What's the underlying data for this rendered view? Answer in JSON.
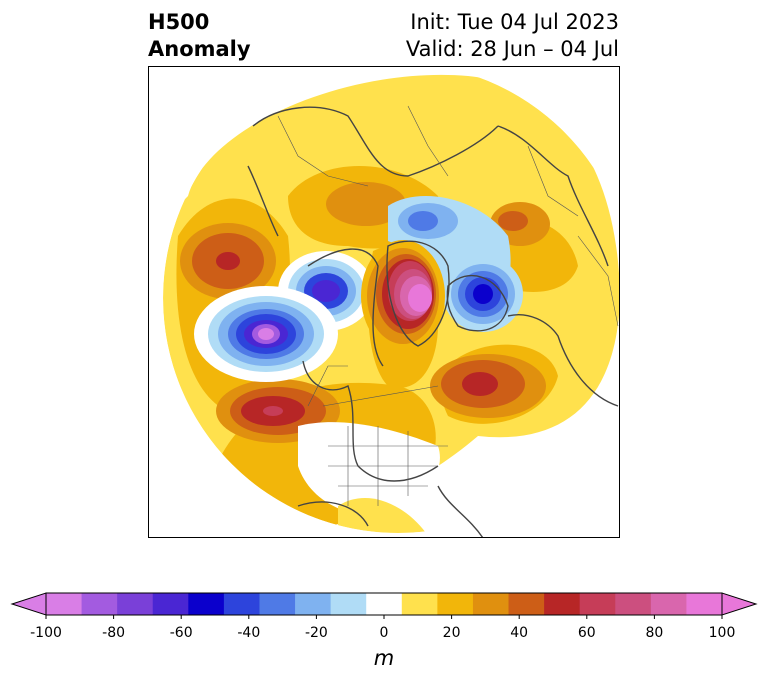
{
  "title": {
    "left_line1": "H500",
    "left_line2": "Anomaly",
    "right_line1": "Init: Tue 04 Jul 2023",
    "right_line2": "Valid: 28 Jun – 04 Jul"
  },
  "colorbar": {
    "unit": "m",
    "min": -100,
    "max": 100,
    "extend": "both",
    "levels": [
      -100,
      -90,
      -80,
      -70,
      -60,
      -50,
      -40,
      -30,
      -20,
      -10,
      10,
      20,
      30,
      40,
      50,
      60,
      70,
      80,
      90,
      100
    ],
    "colors": [
      "#d97ee6",
      "#a35be0",
      "#7a40d8",
      "#4a26d3",
      "#0b00cc",
      "#2d44dc",
      "#4f7ae6",
      "#7fb2f0",
      "#b0dcf6",
      "#ffffff",
      "#ffe14d",
      "#f2b60a",
      "#e0900f",
      "#cd5e17",
      "#b72626",
      "#c63d58",
      "#cc4f7f",
      "#d966ad",
      "#e877d9"
    ],
    "ticks": [
      "-100",
      "-80",
      "-60",
      "-40",
      "-20",
      "0",
      "20",
      "40",
      "60",
      "80",
      "100"
    ]
  },
  "map": {
    "projection": "north-polar-stereographic",
    "features": [
      "coastlines",
      "country-borders",
      "us-state-borders"
    ],
    "anomaly_centers": [
      {
        "region": "Gulf of Alaska",
        "peak": -95
      },
      {
        "region": "Western Canada",
        "peak": -70
      },
      {
        "region": "Greenland",
        "peak": 95
      },
      {
        "region": "Barents Sea / Scandinavia",
        "peak": -70
      },
      {
        "region": "Eastern Siberia",
        "peak": 60
      },
      {
        "region": "North Pacific",
        "peak": 60
      },
      {
        "region": "Central North Atlantic",
        "peak": 60
      },
      {
        "region": "Western Russia",
        "peak": 35
      },
      {
        "region": "Northern Siberia",
        "peak": 35
      },
      {
        "region": "Arctic Siberian coast",
        "peak": -35
      }
    ]
  }
}
